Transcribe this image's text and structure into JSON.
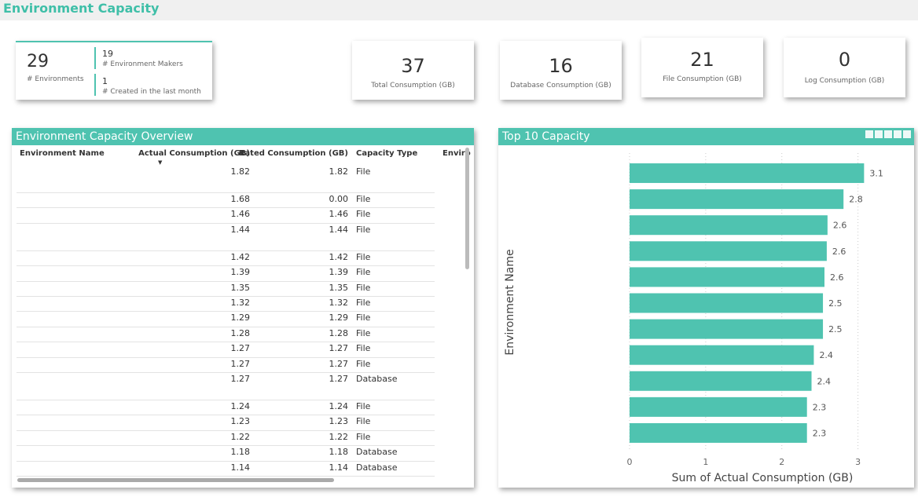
{
  "header": {
    "title": "Environment Capacity"
  },
  "cards": [
    {
      "value": "29",
      "label": "# Environments"
    },
    {
      "value": "19",
      "label": "# Environment Makers"
    },
    {
      "value": "1",
      "label": "# Created in the last month"
    },
    {
      "value": "37",
      "label": "Total Consumption (GB)"
    },
    {
      "value": "16",
      "label": "Database Consumption (GB)"
    },
    {
      "value": "21",
      "label": "File Consumption (GB)"
    },
    {
      "value": "0",
      "label": "Log Consumption (GB)"
    }
  ],
  "table": {
    "title": "Environment Capacity Overview",
    "columns": [
      "Environment Name",
      "Actual Consumption (GB)",
      "Rated Consumption (GB)",
      "Capacity Type",
      "Enviro"
    ],
    "rows": [
      [
        "1.82",
        "1.82",
        "File"
      ],
      [
        "1.68",
        "0.00",
        "File"
      ],
      [
        "1.46",
        "1.46",
        "File"
      ],
      [
        "1.44",
        "1.44",
        "File"
      ],
      [
        "1.42",
        "1.42",
        "File"
      ],
      [
        "1.39",
        "1.39",
        "File"
      ],
      [
        "1.35",
        "1.35",
        "File"
      ],
      [
        "1.32",
        "1.32",
        "File"
      ],
      [
        "1.29",
        "1.29",
        "File"
      ],
      [
        "1.28",
        "1.28",
        "File"
      ],
      [
        "1.27",
        "1.27",
        "File"
      ],
      [
        "1.27",
        "1.27",
        "File"
      ],
      [
        "1.27",
        "1.27",
        "Database"
      ],
      [
        "1.24",
        "1.24",
        "File"
      ],
      [
        "1.23",
        "1.23",
        "File"
      ],
      [
        "1.22",
        "1.22",
        "File"
      ],
      [
        "1.18",
        "1.18",
        "Database"
      ],
      [
        "1.14",
        "1.14",
        "Database"
      ]
    ]
  },
  "chart_data": {
    "type": "bar",
    "orientation": "horizontal",
    "title": "Top 10 Capacity",
    "x_label": "Sum of Actual Consumption (GB)",
    "y_label": "Environment Name",
    "categories": [
      null,
      null,
      null,
      null,
      null,
      null,
      null,
      null,
      null,
      null,
      null
    ],
    "values": [
      3.08,
      2.81,
      2.6,
      2.59,
      2.56,
      2.54,
      2.54,
      2.42,
      2.39,
      2.33,
      2.33
    ],
    "value_labels": [
      "3.1",
      "2.8",
      "2.6",
      "2.6",
      "2.6",
      "2.5",
      "2.5",
      "2.4",
      "2.4",
      "2.3",
      "2.3"
    ],
    "color": "#4fc3b0",
    "xlim": [
      0,
      3.2
    ],
    "xticks": [
      0,
      1,
      2,
      3
    ],
    "grid": true
  }
}
